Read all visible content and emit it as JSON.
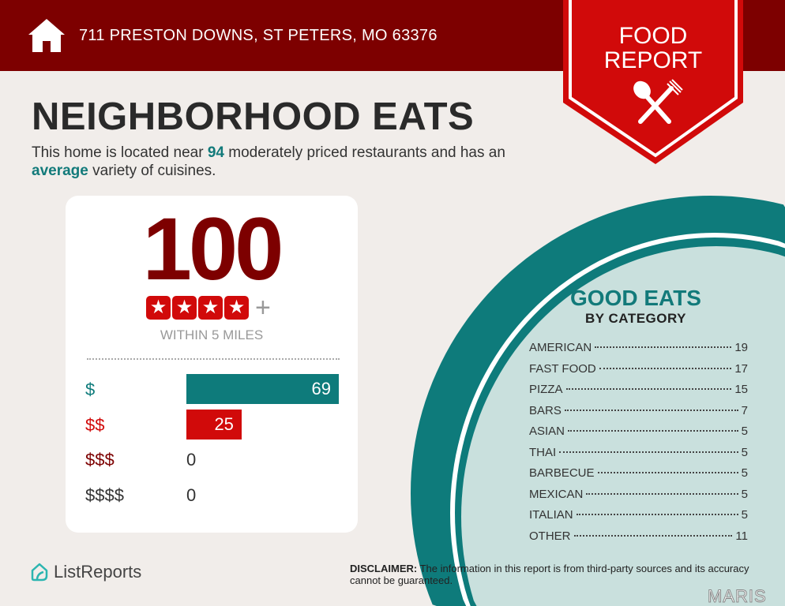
{
  "header": {
    "address": "711 PRESTON DOWNS, ST PETERS, MO 63376",
    "badge_line1": "FOOD",
    "badge_line2": "REPORT"
  },
  "title": "NEIGHBORHOOD EATS",
  "intro": {
    "p1": "This home is located near ",
    "count": "94",
    "p2": " moderately priced restaurants and has an ",
    "variety": "average",
    "p3": " variety of cuisines."
  },
  "score": {
    "value": "100",
    "stars": 4,
    "plus": "+",
    "within": "WITHIN 5 MILES"
  },
  "price_levels": [
    {
      "label": "$",
      "value": 69,
      "color": "#0e7b7b"
    },
    {
      "label": "$$",
      "value": 25,
      "color": "#d10a0a"
    },
    {
      "label": "$$$",
      "value": 0,
      "color": "#7d0000"
    },
    {
      "label": "$$$$",
      "value": 0,
      "color": "#333333"
    }
  ],
  "good_eats": {
    "title": "GOOD EATS",
    "subtitle": "BY CATEGORY",
    "items": [
      {
        "name": "AMERICAN",
        "count": "19"
      },
      {
        "name": "FAST FOOD",
        "count": "17"
      },
      {
        "name": "PIZZA",
        "count": "15"
      },
      {
        "name": "BARS",
        "count": "7"
      },
      {
        "name": "ASIAN",
        "count": "5"
      },
      {
        "name": "THAI",
        "count": "5"
      },
      {
        "name": "BARBECUE",
        "count": "5"
      },
      {
        "name": "MEXICAN",
        "count": "5"
      },
      {
        "name": "ITALIAN",
        "count": "5"
      },
      {
        "name": "OTHER",
        "count": "11"
      }
    ]
  },
  "footer": {
    "logo": "ListReports",
    "disclaimer_label": "DISCLAIMER:",
    "disclaimer": " The information in this report is from third-party sources and its accuracy cannot be guaranteed.",
    "watermark": "MARIS"
  },
  "colors": {
    "header": "#7d0000",
    "accent_red": "#d10a0a",
    "teal": "#0e7b7b",
    "circle_fill": "#c9e0dd",
    "background": "#f1edea"
  }
}
